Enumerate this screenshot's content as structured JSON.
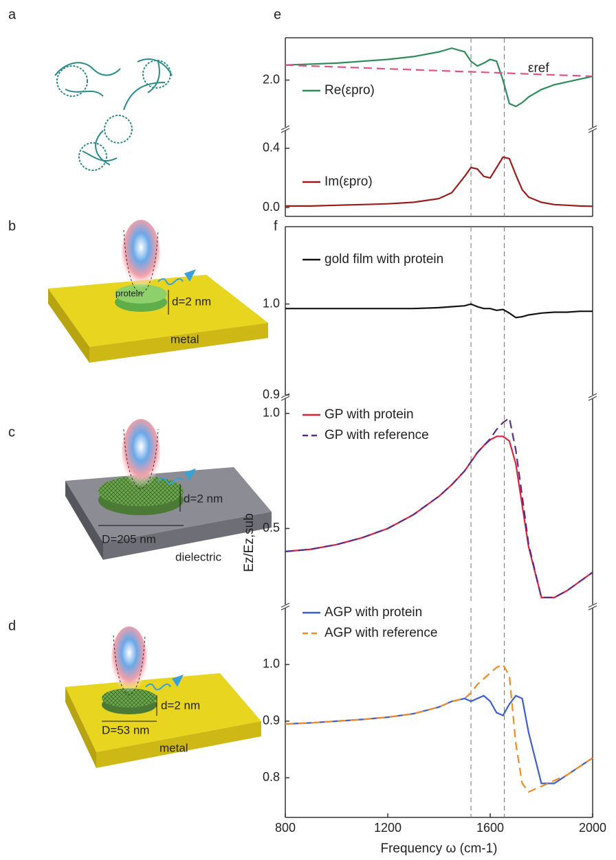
{
  "panels": [
    "a",
    "b",
    "c",
    "d",
    "e",
    "f"
  ],
  "diagrams": {
    "b": {
      "layer": "protein",
      "thickness": "d=2 nm",
      "substrate": "metal"
    },
    "c": {
      "thickness": "d=2 nm",
      "diameter": "D=205 nm",
      "substrate": "dielectric"
    },
    "d": {
      "thickness": "d=2 nm",
      "diameter": "D=53 nm",
      "substrate": "metal"
    }
  },
  "chart_data": [
    {
      "type": "line",
      "x": [
        800,
        900,
        1000,
        1100,
        1200,
        1300,
        1400,
        1450,
        1500,
        1525,
        1550,
        1575,
        1600,
        1625,
        1650,
        1675,
        1700,
        1725,
        1750,
        1800,
        1850,
        1900,
        1950,
        2000
      ],
      "xlim": [
        800,
        2000
      ],
      "ylim": [
        1.5,
        2.45
      ],
      "yticks": [
        {
          "value": 2,
          "label": "2.0"
        }
      ],
      "vlines": [
        1525,
        1655
      ],
      "series": [
        {
          "name": "Re(εpro)",
          "color": "#2e8b57",
          "values": [
            2.16,
            2.17,
            2.18,
            2.2,
            2.22,
            2.25,
            2.3,
            2.34,
            2.3,
            2.2,
            2.15,
            2.18,
            2.22,
            2.2,
            2.0,
            1.75,
            1.72,
            1.76,
            1.82,
            1.9,
            1.95,
            1.98,
            2.01,
            2.04
          ]
        },
        {
          "name": "εref",
          "color": "#e0508a",
          "dashed": true,
          "values": [
            2.16,
            2.15,
            2.14,
            2.13,
            2.12,
            2.11,
            2.1,
            2.095,
            2.09,
            2.088,
            2.085,
            2.083,
            2.08,
            2.078,
            2.075,
            2.073,
            2.07,
            2.068,
            2.065,
            2.06,
            2.055,
            2.05,
            2.045,
            2.04
          ]
        }
      ]
    },
    {
      "type": "line",
      "x": [
        800,
        900,
        1000,
        1100,
        1200,
        1300,
        1400,
        1450,
        1500,
        1525,
        1550,
        1575,
        1600,
        1625,
        1650,
        1675,
        1700,
        1725,
        1750,
        1800,
        1850,
        1900,
        1950,
        2000
      ],
      "xlim": [
        800,
        2000
      ],
      "ylim": [
        -0.06,
        0.52
      ],
      "yticks": [
        {
          "value": 0,
          "label": "0.0"
        },
        0.4
      ],
      "vlines": [
        1525,
        1655
      ],
      "series": [
        {
          "name": "Im(εpro)",
          "color": "#9b1b1b",
          "values": [
            0.01,
            0.01,
            0.015,
            0.02,
            0.025,
            0.035,
            0.06,
            0.1,
            0.21,
            0.27,
            0.26,
            0.21,
            0.2,
            0.27,
            0.34,
            0.33,
            0.22,
            0.12,
            0.07,
            0.035,
            0.02,
            0.015,
            0.01,
            0.008
          ]
        }
      ]
    },
    {
      "type": "line",
      "x": [
        800,
        900,
        1000,
        1100,
        1200,
        1300,
        1400,
        1450,
        1500,
        1525,
        1550,
        1575,
        1600,
        1625,
        1650,
        1675,
        1700,
        1725,
        1750,
        1800,
        1850,
        1900,
        1950,
        2000
      ],
      "xlim": [
        800,
        2000
      ],
      "ylim": [
        0.9,
        1.085
      ],
      "yticks": [
        {
          "value": 1,
          "label": "1.0"
        },
        0.9
      ],
      "vlines": [
        1525,
        1655
      ],
      "series": [
        {
          "name": "gold film with protein",
          "color": "#111111",
          "values": [
            0.995,
            0.995,
            0.995,
            0.995,
            0.995,
            0.995,
            0.996,
            0.997,
            0.998,
            1.0,
            0.997,
            0.995,
            0.995,
            0.993,
            0.994,
            0.99,
            0.985,
            0.986,
            0.988,
            0.99,
            0.991,
            0.991,
            0.992,
            0.992
          ]
        }
      ]
    },
    {
      "type": "line",
      "x": [
        800,
        900,
        1000,
        1100,
        1200,
        1300,
        1400,
        1450,
        1500,
        1525,
        1550,
        1575,
        1600,
        1625,
        1650,
        1675,
        1700,
        1725,
        1750,
        1800,
        1850,
        1900,
        1950,
        2000
      ],
      "xlim": [
        800,
        2000
      ],
      "ylim": [
        0.17,
        1.065
      ],
      "yticks": [
        {
          "value": 1,
          "label": "1.0"
        },
        0.5
      ],
      "vlines": [
        1525,
        1655
      ],
      "ylabel": "Ez/Ez,sub",
      "series": [
        {
          "name": "GP with protein",
          "color": "#e0203a",
          "values": [
            0.4,
            0.41,
            0.43,
            0.46,
            0.5,
            0.56,
            0.64,
            0.69,
            0.75,
            0.79,
            0.83,
            0.86,
            0.885,
            0.9,
            0.9,
            0.88,
            0.78,
            0.6,
            0.42,
            0.2,
            0.2,
            0.23,
            0.27,
            0.31
          ]
        },
        {
          "name": "GP with reference",
          "color": "#5a2a8a",
          "dashed": true,
          "values": [
            0.4,
            0.41,
            0.43,
            0.46,
            0.5,
            0.56,
            0.64,
            0.69,
            0.75,
            0.79,
            0.83,
            0.86,
            0.89,
            0.93,
            0.96,
            0.98,
            0.84,
            0.64,
            0.43,
            0.2,
            0.2,
            0.23,
            0.27,
            0.31
          ]
        }
      ]
    },
    {
      "type": "line",
      "x": [
        800,
        900,
        1000,
        1100,
        1200,
        1300,
        1400,
        1450,
        1500,
        1525,
        1550,
        1575,
        1600,
        1625,
        1650,
        1675,
        1700,
        1725,
        1750,
        1800,
        1850,
        1900,
        1950,
        2000
      ],
      "xlim": [
        800,
        2000
      ],
      "ylim": [
        0.73,
        1.1
      ],
      "yticks": [
        {
          "value": 1,
          "label": "1.0"
        },
        0.9,
        0.8
      ],
      "vlines": [
        1525,
        1655
      ],
      "xticks": [
        800,
        1200,
        1600,
        2000
      ],
      "xlabel": "Frequency ω  (cm-1)",
      "series": [
        {
          "name": "AGP with protein",
          "color": "#3a5fcd",
          "values": [
            0.895,
            0.897,
            0.9,
            0.903,
            0.907,
            0.913,
            0.925,
            0.935,
            0.94,
            0.935,
            0.94,
            0.945,
            0.935,
            0.915,
            0.91,
            0.93,
            0.945,
            0.94,
            0.88,
            0.79,
            0.79,
            0.805,
            0.82,
            0.835
          ]
        },
        {
          "name": "AGP with reference",
          "color": "#f08a24",
          "dashed": true,
          "values": [
            0.895,
            0.897,
            0.9,
            0.903,
            0.907,
            0.913,
            0.925,
            0.935,
            0.94,
            0.95,
            0.965,
            0.975,
            0.985,
            0.995,
            1.0,
            0.98,
            0.86,
            0.79,
            0.775,
            0.785,
            0.795,
            0.805,
            0.82,
            0.835
          ]
        }
      ]
    }
  ]
}
